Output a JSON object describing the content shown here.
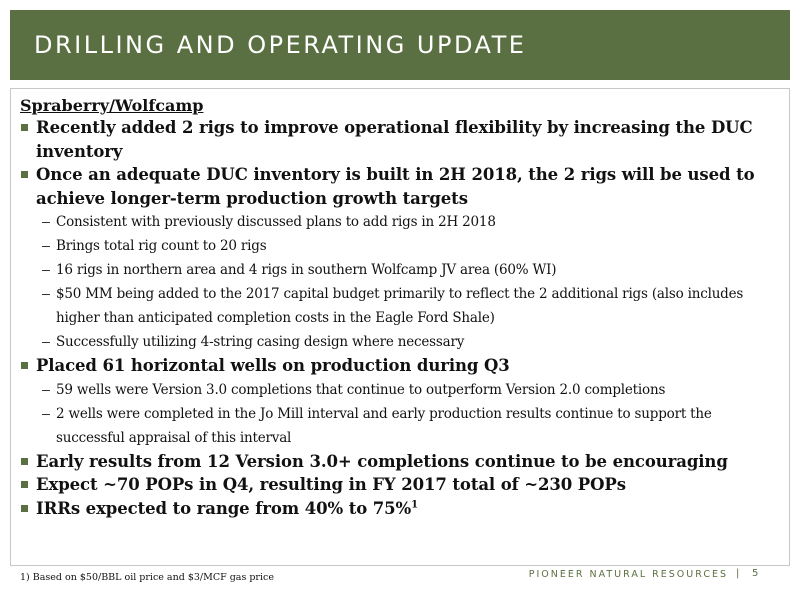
{
  "header": {
    "title": "DRILLING AND OPERATING UPDATE"
  },
  "section": {
    "heading": "Spraberry/Wolfcamp"
  },
  "items": [
    {
      "text": "Recently added 2 rigs to improve operational flexibility by increasing the DUC inventory"
    },
    {
      "text": "Once an adequate DUC inventory is built in 2H 2018, the 2 rigs will be used to achieve longer-term production growth targets"
    },
    {
      "text": "Placed 61 horizontal wells on production during Q3"
    },
    {
      "text": "Early results from 12 Version 3.0+ completions continue to be encouraging"
    },
    {
      "text": "Expect ~70 POPs in Q4, resulting in FY 2017 total of ~230 POPs"
    },
    {
      "text": "IRRs expected to range from 40% to 75%",
      "superscript": "1"
    }
  ],
  "subitems_1": [
    "Consistent with previously discussed plans to add rigs in 2H 2018",
    "Brings total rig count to 20 rigs",
    "16 rigs in northern area and 4 rigs in southern Wolfcamp JV area (60% WI)",
    "$50 MM being added to the 2017 capital budget primarily to reflect the 2 additional rigs (also includes higher than anticipated completion costs in the Eagle Ford Shale)",
    "Successfully utilizing 4-string casing design where necessary"
  ],
  "subitems_2": [
    "59 wells were Version 3.0 completions that continue to outperform Version 2.0 completions",
    "2 wells were completed in the Jo Mill interval and early production results continue to support the successful appraisal of this interval"
  ],
  "footer": {
    "footnote": "1)  Based on $50/BBL oil price and $3/MCF gas price",
    "brand": "PIONEER NATURAL RESOURCES",
    "divider": "|",
    "page": "5"
  },
  "colors": {
    "accent": "#5b7042"
  }
}
